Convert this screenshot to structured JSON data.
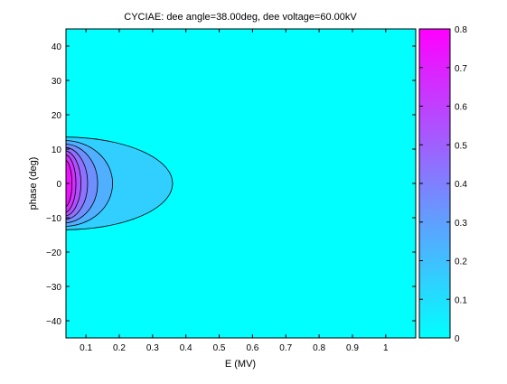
{
  "chart_data": {
    "type": "contour",
    "title": "CYCIAE: dee angle=38.00deg, dee voltage=60.00kV",
    "xlabel": "E (MV)",
    "ylabel": "phase (deg)",
    "xlim": [
      0.04,
      1.09
    ],
    "ylim": [
      -45,
      45
    ],
    "x_ticks": [
      0.1,
      0.2,
      0.3,
      0.4,
      0.5,
      0.6,
      0.7,
      0.8,
      0.9,
      1
    ],
    "x_tick_labels": [
      "0.1",
      "0.2",
      "0.3",
      "0.4",
      "0.5",
      "0.6",
      "0.7",
      "0.8",
      "0.9",
      "1"
    ],
    "y_ticks": [
      40,
      30,
      20,
      10,
      0,
      -10,
      -20,
      -30,
      -40
    ],
    "y_tick_labels": [
      "40",
      "30",
      "20",
      "10",
      "0",
      "−10",
      "−20",
      "−30",
      "−40"
    ],
    "grid": false,
    "colorbar": {
      "position": "right",
      "range": [
        0,
        0.8
      ],
      "ticks": [
        0,
        0.1,
        0.2,
        0.3,
        0.4,
        0.5,
        0.6,
        0.7,
        0.8
      ],
      "tick_labels": [
        "0",
        "0.1",
        "0.2",
        "0.3",
        "0.4",
        "0.5",
        "0.6",
        "0.7",
        "0.8"
      ],
      "color_low": "#00ffff",
      "color_high": "#ff00ff"
    },
    "contours": [
      {
        "level": 0.1,
        "e_max": 0.36,
        "phase_half_width": 13.5
      },
      {
        "level": 0.2,
        "e_max": 0.18,
        "phase_half_width": 12.5
      },
      {
        "level": 0.3,
        "e_max": 0.135,
        "phase_half_width": 11.5
      },
      {
        "level": 0.4,
        "e_max": 0.105,
        "phase_half_width": 10.5
      },
      {
        "level": 0.5,
        "e_max": 0.085,
        "phase_half_width": 9.5
      },
      {
        "level": 0.6,
        "e_max": 0.07,
        "phase_half_width": 8.5
      },
      {
        "level": 0.7,
        "e_max": 0.058,
        "phase_half_width": 7.0
      }
    ]
  }
}
